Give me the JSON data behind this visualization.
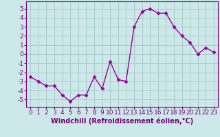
{
  "x": [
    0,
    1,
    2,
    3,
    4,
    5,
    6,
    7,
    8,
    9,
    10,
    11,
    12,
    13,
    14,
    15,
    16,
    17,
    18,
    19,
    20,
    21,
    22,
    23
  ],
  "y": [
    -2.5,
    -3.0,
    -3.5,
    -3.5,
    -4.5,
    -5.2,
    -4.5,
    -4.5,
    -2.5,
    -3.8,
    -0.8,
    -2.8,
    -3.0,
    3.0,
    4.7,
    5.0,
    4.5,
    4.5,
    3.0,
    2.0,
    1.3,
    0.0,
    0.7,
    0.2
  ],
  "line_color": "#990099",
  "marker": "D",
  "marker_size": 2.5,
  "line_width": 1.0,
  "xlabel": "Windchill (Refroidissement éolien,°C)",
  "xlabel_fontsize": 7,
  "xlim": [
    -0.5,
    23.5
  ],
  "ylim": [
    -5.8,
    5.8
  ],
  "yticks": [
    -5,
    -4,
    -3,
    -2,
    -1,
    0,
    1,
    2,
    3,
    4,
    5
  ],
  "xticks": [
    0,
    1,
    2,
    3,
    4,
    5,
    6,
    7,
    8,
    9,
    10,
    11,
    12,
    13,
    14,
    15,
    16,
    17,
    18,
    19,
    20,
    21,
    22,
    23
  ],
  "grid_color": "#aacccc",
  "bg_color": "#cce8e8",
  "tick_fontsize": 6.5,
  "fig_bg": "#cce8e8",
  "spine_color": "#770077"
}
